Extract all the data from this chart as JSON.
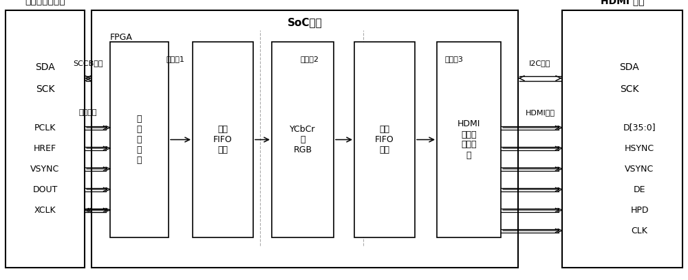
{
  "title_soc": "SoC芯片",
  "title_fpga": "FPGA",
  "title_left": "流数据传感设备",
  "title_right": "HDMI 芯片",
  "left_signals_top": [
    "SDA",
    "SCK"
  ],
  "left_signals_bot": [
    "PCLK",
    "HREF",
    "VSYNC",
    "DOUT",
    "XCLK"
  ],
  "right_signals_top": [
    "SDA",
    "SCK"
  ],
  "right_signals_bot": [
    "D[35:0]",
    "HSYNC",
    "VSYNC",
    "DE",
    "HPD",
    "CLK"
  ],
  "sccb_label": "SCCB总线",
  "data_label": "数据总线",
  "i2c_label": "I2C总线",
  "hdmi_label": "HDMI总线",
  "cd1": "时钟域1",
  "cd2": "时钟域2",
  "cd3": "时钟域3",
  "blk1": "流\n数\n据\n采\n集",
  "blk2": "一级\nFIFO\n缓存",
  "blk3": "YCbCr\n转\nRGB",
  "blk4": "二级\nFIFO\n缓存",
  "blk5": "HDMI\n芯片配\n置、传\n输",
  "bg_color": "#ffffff"
}
